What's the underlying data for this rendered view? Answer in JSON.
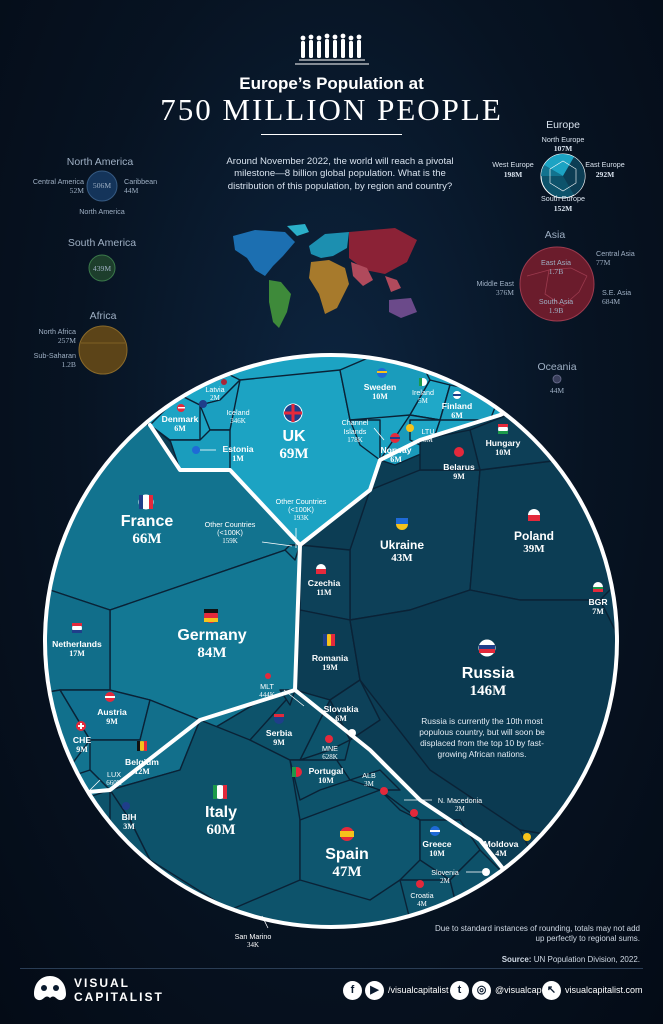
{
  "header": {
    "title_line1": "Europe’s Population at",
    "title_line2": "750 MILLION PEOPLE",
    "intro": "Around November 2022, the world will reach a pivotal milestone—8 billion global population. What is the distribution of this population, by region and country?"
  },
  "colors": {
    "uk_region": "#1ca3c3",
    "west_region": "#12738f",
    "east_region": "#0c3d54",
    "south_region": "#0d536b",
    "borders": "#0a2236",
    "ring": "#ffffff"
  },
  "icons": [
    "people-silhouettes-icon",
    "flag-icons",
    "facebook-icon",
    "youtube-icon",
    "twitter-icon",
    "instagram-icon",
    "cursor-icon",
    "visual-capitalist-logo"
  ],
  "chart_data": {
    "type": "voronoi-treemap",
    "total": "750 MILLION PEOPLE",
    "regions": [
      {
        "name": "North Europe",
        "value": "107M",
        "countries": [
          {
            "name": "UK",
            "value": "69M"
          },
          {
            "name": "Sweden",
            "value": "10M"
          },
          {
            "name": "Denmark",
            "value": "6M"
          },
          {
            "name": "Finland",
            "value": "6M"
          },
          {
            "name": "Norway",
            "value": "6M"
          },
          {
            "name": "Ireland",
            "value": "5M"
          },
          {
            "name": "LTU",
            "value": "3M"
          },
          {
            "name": "Latvia",
            "value": "2M"
          },
          {
            "name": "Estonia",
            "value": "1M"
          },
          {
            "name": "Iceland",
            "value": "346K"
          },
          {
            "name": "Channel Islands",
            "value": "178K"
          },
          {
            "name": "Other Countries (<100K)",
            "value": "193K"
          }
        ]
      },
      {
        "name": "West Europe",
        "value": "198M",
        "countries": [
          {
            "name": "Germany",
            "value": "84M"
          },
          {
            "name": "France",
            "value": "66M"
          },
          {
            "name": "Netherlands",
            "value": "17M"
          },
          {
            "name": "Belgium",
            "value": "12M"
          },
          {
            "name": "Austria",
            "value": "9M"
          },
          {
            "name": "CHE",
            "value": "9M"
          },
          {
            "name": "LUX",
            "value": "660K"
          },
          {
            "name": "Other Countries (<100K)",
            "value": "159K"
          }
        ]
      },
      {
        "name": "East Europe",
        "value": "292M",
        "countries": [
          {
            "name": "Russia",
            "value": "146M"
          },
          {
            "name": "Ukraine",
            "value": "43M"
          },
          {
            "name": "Poland",
            "value": "39M"
          },
          {
            "name": "Romania",
            "value": "19M"
          },
          {
            "name": "Czechia",
            "value": "11M"
          },
          {
            "name": "Hungary",
            "value": "10M"
          },
          {
            "name": "Belarus",
            "value": "9M"
          },
          {
            "name": "BGR",
            "value": "7M"
          },
          {
            "name": "Slovakia",
            "value": "6M"
          },
          {
            "name": "Moldova",
            "value": "4M"
          }
        ]
      },
      {
        "name": "South Europe",
        "value": "152M",
        "countries": [
          {
            "name": "Italy",
            "value": "60M"
          },
          {
            "name": "Spain",
            "value": "47M"
          },
          {
            "name": "Greece",
            "value": "10M"
          },
          {
            "name": "Portugal",
            "value": "10M"
          },
          {
            "name": "Serbia",
            "value": "9M"
          },
          {
            "name": "Croatia",
            "value": "4M"
          },
          {
            "name": "BIH",
            "value": "3M"
          },
          {
            "name": "ALB",
            "value": "3M"
          },
          {
            "name": "Slovenia",
            "value": "2M"
          },
          {
            "name": "N. Macedonia",
            "value": "2M"
          },
          {
            "name": "MNE",
            "value": "628K"
          },
          {
            "name": "MLT",
            "value": "444K"
          },
          {
            "name": "San Marino",
            "value": "34K"
          }
        ]
      }
    ],
    "russia_callout": "Russia is currently the 10th most populous country, but will soon be displaced from the top 10 by fast-growing African nations."
  },
  "world": {
    "europe": {
      "title": "Europe",
      "north": "North Europe",
      "north_v": "107M",
      "west": "West Europe",
      "west_v": "198M",
      "east": "East Europe",
      "east_v": "292M",
      "south": "South Europe",
      "south_v": "152M"
    },
    "north_america": {
      "title": "North America",
      "central": "Central America",
      "central_v": "52M",
      "caribbean": "Caribbean",
      "caribbean_v": "44M",
      "na_v": "506M",
      "na": "North America"
    },
    "south_america": {
      "title": "South America",
      "v": "439M"
    },
    "africa": {
      "title": "Africa",
      "north": "North Africa",
      "north_v": "257M",
      "sub": "Sub-Saharan",
      "sub_v": "1.2B"
    },
    "asia": {
      "title": "Asia",
      "east": "East Asia",
      "east_v": "1.7B",
      "central": "Central Asia",
      "central_v": "77M",
      "middle": "Middle East",
      "middle_v": "376M",
      "south": "South Asia",
      "south_v": "1.9B",
      "se": "S.E. Asia",
      "se_v": "684M"
    },
    "oceania": {
      "title": "Oceania",
      "v": "44M"
    }
  },
  "footer": {
    "note": "Due to standard instances of rounding, totals may not add up perfectly to regional sums.",
    "source_label": "Source:",
    "source": "UN Population Division, 2022.",
    "logo_line1": "VISUAL",
    "logo_line2": "CAPITALIST",
    "handle1": "/visualcapitalist",
    "handle2": "@visualcap",
    "site": "visualcapitalist.com"
  }
}
